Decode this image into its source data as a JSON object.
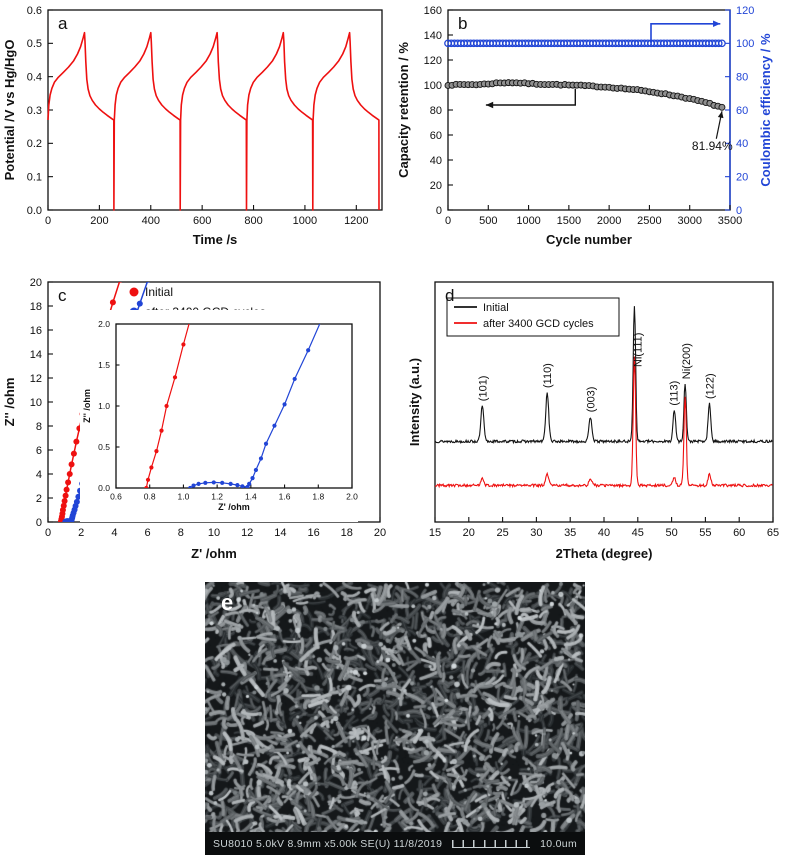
{
  "figure": {
    "panels": {
      "a": {
        "label": "a"
      },
      "b": {
        "label": "b"
      },
      "c": {
        "label": "c"
      },
      "d": {
        "label": "d"
      },
      "e": {
        "label": "e"
      }
    }
  },
  "colors": {
    "red": "#ee1010",
    "blue": "#2145d6",
    "black": "#141414"
  },
  "sem": {
    "info": "SU8010 5.0kV 8.9mm x5.00k SE(U) 11/8/2019",
    "scale": "10.0um"
  },
  "chart_data": [
    {
      "id": "a",
      "type": "line",
      "xlabel": "Time /s",
      "ylabel": "Potential /V vs Hg/HgO",
      "xlim": [
        0,
        1300
      ],
      "ylim": [
        0.0,
        0.6
      ],
      "xticks": [
        0,
        200,
        400,
        600,
        800,
        1000,
        1200
      ],
      "xtick_fmt": 0,
      "yticks": [
        0.0,
        0.1,
        0.2,
        0.3,
        0.4,
        0.5,
        0.6
      ],
      "ytick_fmt": 1,
      "series": [
        {
          "name": "GCD curves",
          "color": "#ee1010",
          "cycle_period": 258,
          "num_cycles": 5,
          "cycle_points": [
            [
              0,
              0.27
            ],
            [
              3,
              0.315
            ],
            [
              8,
              0.345
            ],
            [
              15,
              0.365
            ],
            [
              25,
              0.383
            ],
            [
              40,
              0.398
            ],
            [
              60,
              0.413
            ],
            [
              80,
              0.429
            ],
            [
              100,
              0.448
            ],
            [
              115,
              0.468
            ],
            [
              127,
              0.49
            ],
            [
              137,
              0.517
            ],
            [
              142,
              0.532
            ],
            [
              144,
              0.505
            ],
            [
              147,
              0.445
            ],
            [
              151,
              0.392
            ],
            [
              156,
              0.363
            ],
            [
              163,
              0.343
            ],
            [
              172,
              0.329
            ],
            [
              185,
              0.315
            ],
            [
              200,
              0.303
            ],
            [
              215,
              0.293
            ],
            [
              230,
              0.284
            ],
            [
              243,
              0.277
            ],
            [
              252,
              0.272
            ],
            [
              256,
              0.27
            ],
            [
              256.5,
              0.0
            ]
          ]
        }
      ]
    },
    {
      "id": "b",
      "type": "scatter",
      "xlabel": "Cycle number",
      "ylabel_left": "Capacity retention / %",
      "ylabel_right": "Coulombic efficiency / %",
      "xlim": [
        0,
        3500
      ],
      "ylim_left": [
        0,
        160
      ],
      "ylim_right": [
        0,
        120
      ],
      "xticks": [
        0,
        500,
        1000,
        1500,
        2000,
        2500,
        3000,
        3500
      ],
      "yticks_left": [
        0,
        20,
        40,
        60,
        80,
        100,
        120,
        140,
        160
      ],
      "yticks_right": [
        0,
        20,
        40,
        60,
        80,
        100,
        120
      ],
      "annotation": {
        "text": "81.94%",
        "x": 3280,
        "y": 48,
        "arrow_from": [
          3330,
          57
        ],
        "arrow_to": [
          3400,
          79
        ]
      },
      "arrow_left": {
        "path": [
          [
            1580,
            97
          ],
          [
            1580,
            84
          ],
          [
            470,
            84
          ]
        ]
      },
      "arrow_right": {
        "path": [
          [
            2520,
            134
          ],
          [
            2520,
            149
          ],
          [
            3380,
            149
          ]
        ]
      },
      "series": [
        {
          "name": "Capacity retention",
          "axis": "left",
          "color": "#141414",
          "marker": "sphere",
          "step": 50,
          "x_end": 3400,
          "control_points": [
            [
              0,
              100
            ],
            [
              150,
              100.3
            ],
            [
              400,
              100.4
            ],
            [
              600,
              101.5
            ],
            [
              750,
              102
            ],
            [
              900,
              101.6
            ],
            [
              1100,
              100.8
            ],
            [
              1400,
              100.2
            ],
            [
              1700,
              99.4
            ],
            [
              2000,
              98.2
            ],
            [
              2300,
              96.4
            ],
            [
              2600,
              93.8
            ],
            [
              2900,
              90.5
            ],
            [
              3100,
              87.5
            ],
            [
              3250,
              85
            ],
            [
              3400,
              82
            ]
          ]
        },
        {
          "name": "Coulombic efficiency",
          "axis": "right",
          "color": "#2145d6",
          "marker": "circle",
          "value": 100,
          "x_start": 0,
          "x_end": 3400,
          "step": 40
        }
      ]
    },
    {
      "id": "c",
      "type": "scatter-line",
      "xlabel": "Z' /ohm",
      "ylabel": "Z'' /ohm",
      "xlim": [
        0,
        20
      ],
      "ylim": [
        0,
        20
      ],
      "xticks": [
        0,
        2,
        4,
        6,
        8,
        10,
        12,
        14,
        16,
        18,
        20
      ],
      "yticks": [
        0,
        2,
        4,
        6,
        8,
        10,
        12,
        14,
        16,
        18,
        20
      ],
      "xtick_fmt": 0,
      "ytick_fmt": 0,
      "legend": [
        {
          "label": "Initial",
          "color": "#ee1010"
        },
        {
          "label": "after 3400 GCD cycles",
          "color": "#2145d6"
        }
      ],
      "inset": {
        "xlim": [
          0.6,
          2.0
        ],
        "ylim": [
          0.0,
          2.0
        ],
        "xticks": [
          0.6,
          0.8,
          1.0,
          1.2,
          1.4,
          1.6,
          1.8,
          2.0
        ],
        "yticks": [
          0.0,
          0.5,
          1.0,
          1.5,
          2.0
        ],
        "xtick_fmt": 1,
        "ytick_fmt": 1,
        "xlabel": "Z' /ohm",
        "ylabel": "Z'' /ohm"
      },
      "series": [
        {
          "name": "Initial",
          "color": "#ee1010",
          "points": [
            [
              0.78,
              0
            ],
            [
              0.79,
              0.1
            ],
            [
              0.81,
              0.25
            ],
            [
              0.84,
              0.45
            ],
            [
              0.87,
              0.7
            ],
            [
              0.9,
              1.0
            ],
            [
              0.95,
              1.35
            ],
            [
              1.0,
              1.75
            ],
            [
              1.06,
              2.2
            ],
            [
              1.12,
              2.7
            ],
            [
              1.21,
              3.3
            ],
            [
              1.31,
              4.0
            ],
            [
              1.42,
              4.8
            ],
            [
              1.56,
              5.7
            ],
            [
              1.71,
              6.7
            ],
            [
              1.89,
              7.8
            ],
            [
              2.08,
              9.0
            ],
            [
              2.31,
              10.3
            ],
            [
              2.57,
              11.7
            ],
            [
              2.85,
              13.2
            ],
            [
              3.17,
              14.8
            ],
            [
              3.52,
              16.5
            ],
            [
              3.91,
              18.3
            ],
            [
              4.35,
              20.2
            ]
          ]
        },
        {
          "name": "after 3400 GCD cycles",
          "color": "#2145d6",
          "points": [
            [
              1.04,
              0
            ],
            [
              1.06,
              0.03
            ],
            [
              1.09,
              0.05
            ],
            [
              1.13,
              0.063
            ],
            [
              1.18,
              0.068
            ],
            [
              1.23,
              0.063
            ],
            [
              1.28,
              0.05
            ],
            [
              1.32,
              0.035
            ],
            [
              1.35,
              0.02
            ],
            [
              1.38,
              0.012
            ],
            [
              1.39,
              0.05
            ],
            [
              1.41,
              0.12
            ],
            [
              1.43,
              0.22
            ],
            [
              1.46,
              0.36
            ],
            [
              1.49,
              0.54
            ],
            [
              1.54,
              0.76
            ],
            [
              1.6,
              1.02
            ],
            [
              1.66,
              1.33
            ],
            [
              1.74,
              1.68
            ],
            [
              1.83,
              2.1
            ],
            [
              1.93,
              2.6
            ],
            [
              2.06,
              3.2
            ],
            [
              2.21,
              3.9
            ],
            [
              2.39,
              4.7
            ],
            [
              2.59,
              5.6
            ],
            [
              2.81,
              6.6
            ],
            [
              3.06,
              7.7
            ],
            [
              3.33,
              8.9
            ],
            [
              3.63,
              10.2
            ],
            [
              3.95,
              11.6
            ],
            [
              4.3,
              13.1
            ],
            [
              4.68,
              14.7
            ],
            [
              5.09,
              16.4
            ],
            [
              5.53,
              18.2
            ],
            [
              6.03,
              20.2
            ]
          ]
        }
      ]
    },
    {
      "id": "d",
      "type": "line",
      "xlabel": "2Theta (degree)",
      "ylabel": "Intensity (a.u.)",
      "xlim": [
        15,
        65
      ],
      "xticks": [
        15,
        20,
        25,
        30,
        35,
        40,
        45,
        50,
        55,
        60,
        65
      ],
      "xtick_fmt": 0,
      "legend": [
        {
          "label": "Initial",
          "color": "#141414"
        },
        {
          "label": "after 3400 GCD cycles",
          "color": "#ee1010"
        }
      ],
      "baselines": {
        "black": 0.33,
        "red": 0.13
      },
      "peaks": [
        {
          "pos": 22.0,
          "label": "(101)",
          "black": 0.16,
          "red": 0.035,
          "width": 0.22,
          "ldx": 4,
          "ldy": -5
        },
        {
          "pos": 31.6,
          "label": "(110)",
          "black": 0.22,
          "red": 0.05,
          "width": 0.22,
          "ldx": 4,
          "ldy": -5
        },
        {
          "pos": 38.0,
          "label": "(003)",
          "black": 0.11,
          "red": 0.03,
          "width": 0.22,
          "ldx": 4,
          "ldy": -5
        },
        {
          "pos": 44.5,
          "label": "Ni(111)",
          "black": 0.62,
          "red": 0.58,
          "width": 0.18,
          "ldx": 7,
          "ldy": 62
        },
        {
          "pos": 50.4,
          "label": "(113)",
          "black": 0.14,
          "red": 0.035,
          "width": 0.2,
          "ldx": 3,
          "ldy": -5
        },
        {
          "pos": 52.0,
          "label": "Ni(200)",
          "black": 0.26,
          "red": 0.4,
          "width": 0.18,
          "ldx": 5,
          "ldy": -5
        },
        {
          "pos": 55.6,
          "label": "(122)",
          "black": 0.17,
          "red": 0.05,
          "width": 0.2,
          "ldx": 4,
          "ldy": -5
        }
      ]
    }
  ]
}
